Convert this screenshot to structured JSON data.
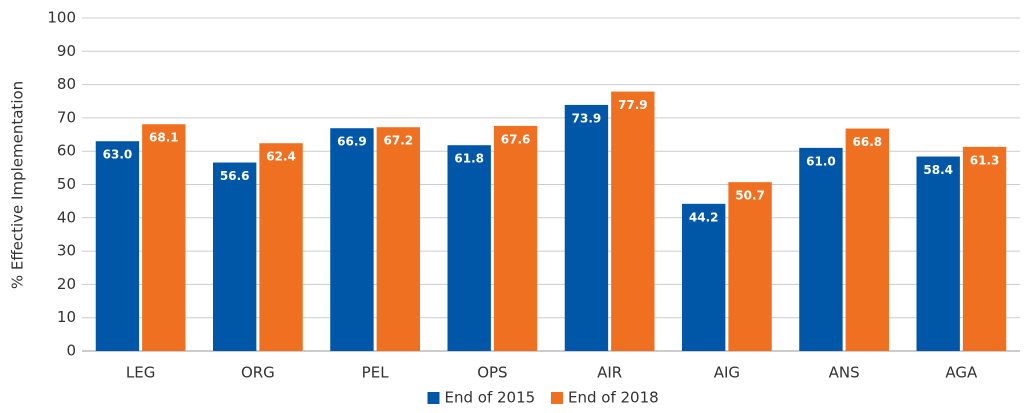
{
  "chart_data": {
    "type": "bar",
    "y_label": "% Effective Implementation",
    "categories": [
      "LEG",
      "ORG",
      "PEL",
      "OPS",
      "AIR",
      "AIG",
      "ANS",
      "AGA"
    ],
    "series": [
      {
        "name": "End of 2015",
        "color": "#0057a8",
        "values": [
          63.0,
          56.6,
          66.9,
          61.8,
          73.9,
          44.2,
          61.0,
          58.4
        ],
        "value_labels": [
          "63.0",
          "56.6",
          "66.9",
          "61.8",
          "73.9",
          "44.2",
          "61.0",
          "58.4"
        ]
      },
      {
        "name": "End of 2018",
        "color": "#f07021",
        "values": [
          68.1,
          62.4,
          67.2,
          67.6,
          77.9,
          50.7,
          66.8,
          61.3
        ],
        "value_labels": [
          "68.1",
          "62.4",
          "67.2",
          "67.6",
          "77.9",
          "50.7",
          "66.8",
          "61.3"
        ]
      }
    ],
    "ylim": [
      0,
      100
    ],
    "yticks": [
      0,
      10,
      20,
      30,
      40,
      50,
      60,
      70,
      80,
      90,
      100
    ],
    "grid": true,
    "legend": "bottom"
  }
}
